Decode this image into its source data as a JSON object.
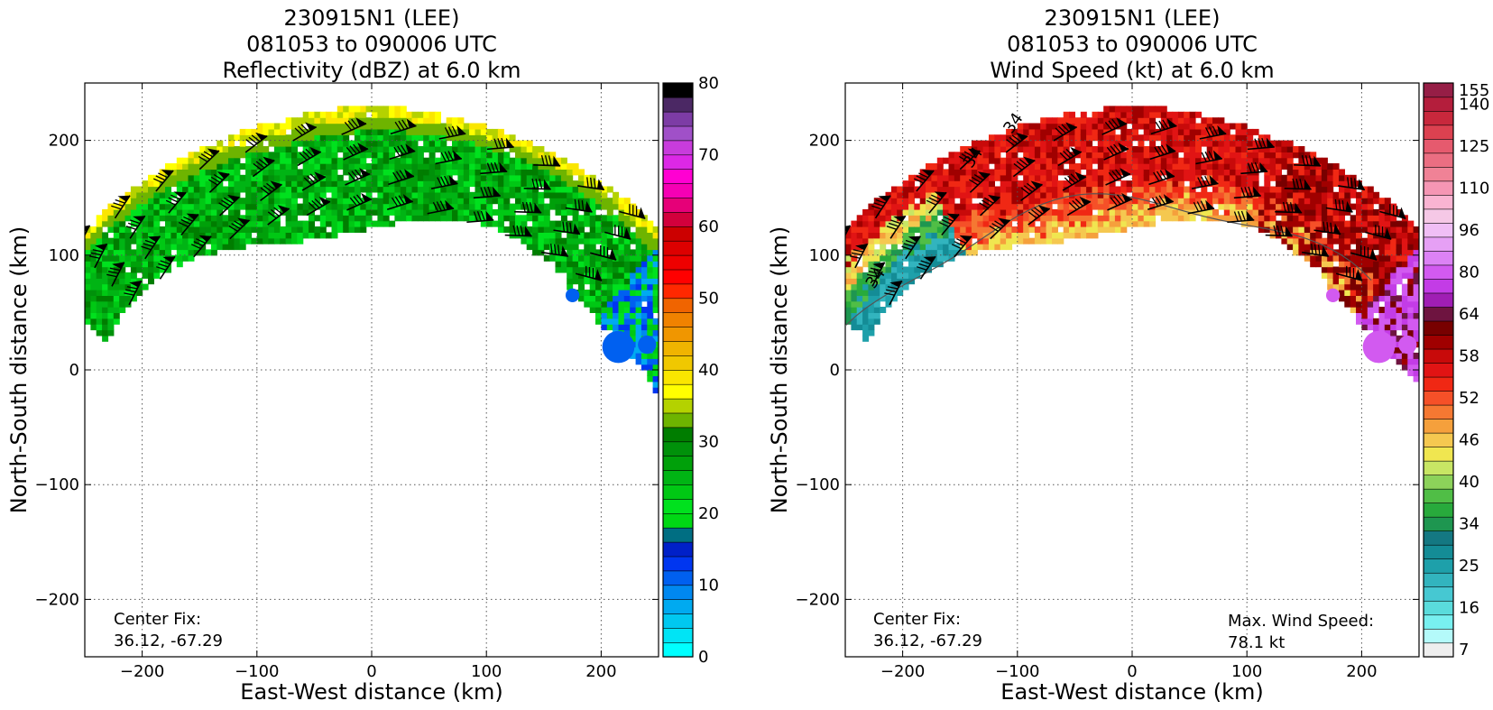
{
  "chart_data": [
    {
      "type": "heatmap",
      "title_lines": [
        "230915N1 (LEE)",
        "081053 to 090006 UTC",
        "Reflectivity (dBZ) at 6.0 km"
      ],
      "xlabel": "East-West distance (km)",
      "ylabel": "North-South distance (km)",
      "xlim": [
        -250,
        250
      ],
      "ylim": [
        -250,
        250
      ],
      "xticks": [
        -200,
        -100,
        0,
        100,
        200
      ],
      "yticks": [
        -200,
        -100,
        0,
        100,
        200
      ],
      "grid": true,
      "colorbar": {
        "range": [
          0,
          80
        ],
        "ticks": [
          0,
          10,
          20,
          30,
          40,
          50,
          60,
          70,
          80
        ],
        "colors": [
          "#00ffff",
          "#00e4f5",
          "#00c8f0",
          "#00aaf0",
          "#0088f0",
          "#0060f0",
          "#0036f0",
          "#0020c8",
          "#006e82",
          "#00d814",
          "#00e11e",
          "#00c814",
          "#00b414",
          "#00a00a",
          "#00910a",
          "#007d00",
          "#6eb400",
          "#b4d200",
          "#ffff00",
          "#fae600",
          "#f0c800",
          "#f0b400",
          "#f09600",
          "#f08200",
          "#f06400",
          "#ff2800",
          "#ff0000",
          "#ee0000",
          "#dd0000",
          "#cc0000",
          "#d2003c",
          "#e60078",
          "#f500b4",
          "#ff00d2",
          "#dc28e6",
          "#c83cdc",
          "#a050c8",
          "#7d3ca5",
          "#4b2864",
          "#000000"
        ]
      },
      "annotation": {
        "label": "Center Fix:",
        "value": "36.12, -67.29"
      },
      "field": "reflectivity",
      "arc": {
        "center_km": [
          0,
          -170
        ],
        "radius_km": [
          315,
          330
        ],
        "angles_deg": [
          25,
          137
        ],
        "rain_free_center": true
      }
    },
    {
      "type": "heatmap",
      "title_lines": [
        "230915N1 (LEE)",
        "081053 to 090006 UTC",
        "Wind Speed (kt) at 6.0 km"
      ],
      "xlabel": "East-West distance (km)",
      "ylabel": "North-South distance (km)",
      "xlim": [
        -250,
        250
      ],
      "ylim": [
        -250,
        250
      ],
      "xticks": [
        -200,
        -100,
        0,
        100,
        200
      ],
      "yticks": [
        -200,
        -100,
        0,
        100,
        200
      ],
      "grid": true,
      "colorbar": {
        "ticks": [
          7,
          16,
          25,
          34,
          40,
          46,
          52,
          58,
          64,
          80,
          96,
          110,
          125,
          140,
          155
        ],
        "colors": [
          "#eeeeee",
          "#b4fafa",
          "#78f0f0",
          "#5adcdc",
          "#46c8d2",
          "#32b4be",
          "#1ea0aa",
          "#148c96",
          "#147882",
          "#1e9650",
          "#28aa3c",
          "#50be46",
          "#8cd25a",
          "#c8e664",
          "#f0e650",
          "#f5c850",
          "#f5a03c",
          "#f57832",
          "#f55028",
          "#f02814",
          "#e11414",
          "#c80a0a",
          "#a00000",
          "#780000",
          "#6e1440",
          "#a01eb4",
          "#c33ce6",
          "#d25af0",
          "#dc82f5",
          "#e6a0f5",
          "#f0bef5",
          "#f5c8e6",
          "#fab4d2",
          "#f596b4",
          "#f08296",
          "#eb6e82",
          "#e65a6e",
          "#dc4150",
          "#c8283c",
          "#b41e3c",
          "#961e46"
        ]
      },
      "annotation": {
        "label": "Center Fix:",
        "value": "36.12, -67.29"
      },
      "annotation2": {
        "label": "Max. Wind Speed:",
        "value": "78.1 kt"
      },
      "contour_label": "34",
      "field": "wind"
    }
  ]
}
